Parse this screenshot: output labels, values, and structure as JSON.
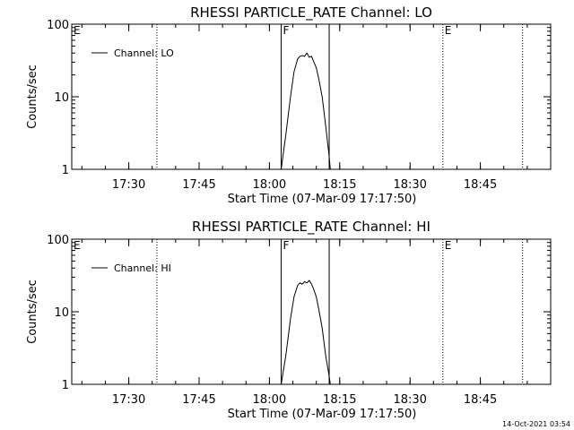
{
  "footer": {
    "timestamp": "14-Oct-2021 03:54"
  },
  "chart_data": [
    {
      "type": "line",
      "title": "RHESSI PARTICLE_RATE Channel: LO",
      "xlabel": "Start Time (07-Mar-09 17:17:50)",
      "ylabel": "Counts/sec",
      "yscale": "log",
      "ylim": [
        1,
        100
      ],
      "xlim": [
        "17:17:50",
        "19:00:00"
      ],
      "xticks": [
        "17:30",
        "17:45",
        "18:00",
        "18:15",
        "18:30",
        "18:45"
      ],
      "yticks": [
        "1",
        "10",
        "100"
      ],
      "legend": {
        "placement": "top-left"
      },
      "series": [
        {
          "name": "Channel: LO",
          "color": "#000000",
          "x": [
            "18:02:30",
            "18:03:30",
            "18:04:30",
            "18:05:15",
            "18:06:00",
            "18:06:30",
            "18:07:00",
            "18:07:30",
            "18:08:00",
            "18:08:30",
            "18:09:00",
            "18:09:30",
            "18:10:00",
            "18:10:30",
            "18:11:15",
            "18:12:00",
            "18:12:45",
            "18:13:00"
          ],
          "y": [
            1.0,
            3.0,
            10,
            22,
            33,
            36,
            37,
            36,
            40,
            35,
            36,
            30,
            25,
            18,
            10,
            4,
            1.5,
            1.0
          ]
        }
      ],
      "annotations": [
        {
          "text": "E",
          "x": "17:17:50"
        },
        {
          "text": "F",
          "x": "18:02:30"
        },
        {
          "text": "E",
          "x": "18:37:00"
        }
      ],
      "vlines_dotted": [
        "17:36:00",
        "18:37:00",
        "18:54:00"
      ],
      "vlines_solid": [
        "18:02:30",
        "18:12:45"
      ]
    },
    {
      "type": "line",
      "title": "RHESSI PARTICLE_RATE Channel: HI",
      "xlabel": "Start Time (07-Mar-09 17:17:50)",
      "ylabel": "Counts/sec",
      "yscale": "log",
      "ylim": [
        1,
        100
      ],
      "xlim": [
        "17:17:50",
        "19:00:00"
      ],
      "xticks": [
        "17:30",
        "17:45",
        "18:00",
        "18:15",
        "18:30",
        "18:45"
      ],
      "yticks": [
        "1",
        "10",
        "100"
      ],
      "legend": {
        "placement": "top-left"
      },
      "series": [
        {
          "name": "Channel: HI",
          "color": "#000000",
          "x": [
            "18:02:30",
            "18:03:30",
            "18:04:30",
            "18:05:15",
            "18:06:00",
            "18:06:30",
            "18:07:00",
            "18:07:30",
            "18:08:00",
            "18:08:30",
            "18:09:00",
            "18:09:30",
            "18:10:00",
            "18:10:30",
            "18:11:15",
            "18:12:00",
            "18:12:45",
            "18:13:00"
          ],
          "y": [
            1.0,
            2.5,
            8,
            16,
            23,
            25,
            24,
            26,
            25,
            27,
            24,
            20,
            16,
            11,
            6,
            2.5,
            1.3,
            1.0
          ]
        }
      ],
      "annotations": [
        {
          "text": "E",
          "x": "17:17:50"
        },
        {
          "text": "F",
          "x": "18:02:30"
        },
        {
          "text": "E",
          "x": "18:37:00"
        }
      ],
      "vlines_dotted": [
        "17:36:00",
        "18:37:00",
        "18:54:00"
      ],
      "vlines_solid": [
        "18:02:30",
        "18:12:45"
      ]
    }
  ]
}
